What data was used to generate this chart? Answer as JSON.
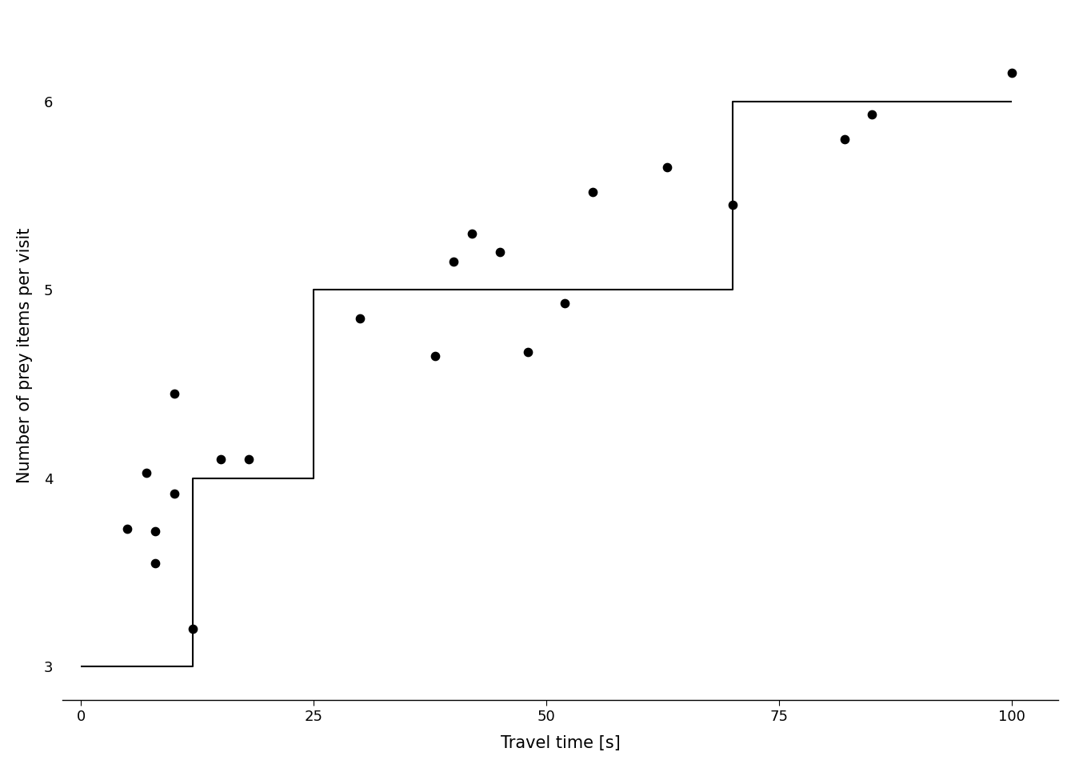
{
  "scatter_x": [
    5,
    7,
    8,
    8,
    10,
    10,
    12,
    15,
    18,
    30,
    38,
    40,
    42,
    45,
    48,
    52,
    55,
    63,
    70,
    82,
    85,
    100
  ],
  "scatter_y": [
    3.73,
    4.03,
    3.72,
    3.55,
    4.45,
    3.92,
    3.2,
    4.1,
    4.1,
    4.85,
    4.65,
    5.15,
    5.3,
    5.2,
    4.67,
    4.93,
    5.52,
    5.65,
    5.45,
    5.8,
    5.93,
    6.15
  ],
  "step_x": [
    0,
    12,
    12,
    25,
    25,
    70,
    70,
    100
  ],
  "step_y": [
    3.0,
    3.0,
    4.0,
    4.0,
    5.0,
    5.0,
    6.0,
    6.0
  ],
  "xlabel": "Travel time [s]",
  "ylabel": "Number of prey items per visit",
  "xlim": [
    -2,
    105
  ],
  "ylim": [
    2.85,
    6.45
  ],
  "xticks": [
    0,
    25,
    50,
    75,
    100
  ],
  "yticks": [
    3,
    4,
    5,
    6
  ],
  "background_color": "#ffffff",
  "line_color": "#000000",
  "scatter_color": "#000000",
  "scatter_size": 55,
  "line_width": 1.5,
  "xlabel_fontsize": 15,
  "ylabel_fontsize": 15,
  "tick_fontsize": 13
}
